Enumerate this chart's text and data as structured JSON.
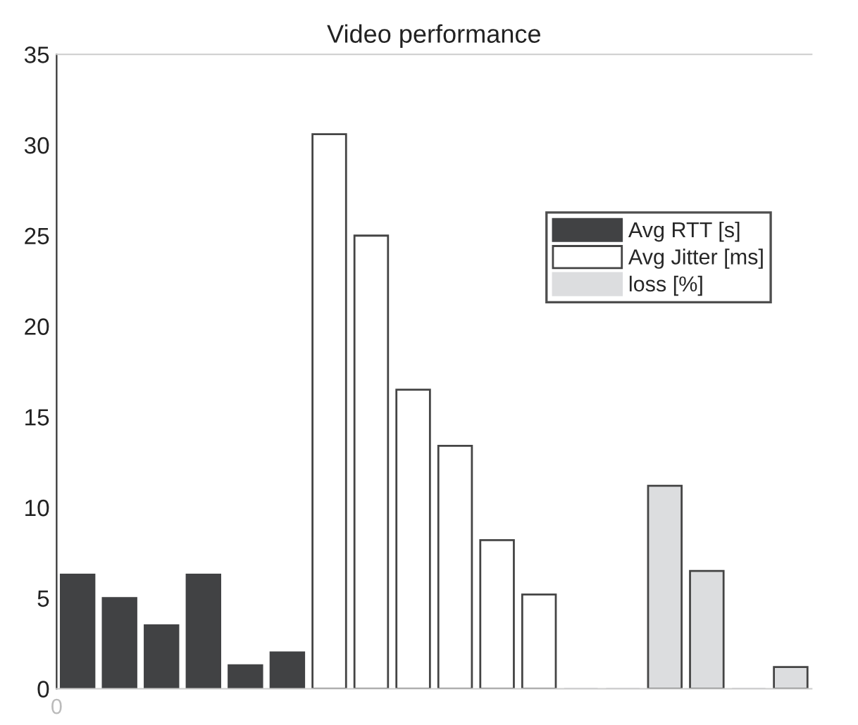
{
  "chart_data": {
    "type": "bar",
    "title": "Video performance",
    "categories": [
      null,
      null,
      null,
      null,
      null,
      null,
      null,
      null,
      null,
      null,
      null,
      null,
      null,
      null,
      null,
      null,
      null,
      null
    ],
    "series": [
      {
        "name": "Avg RTT [s]",
        "color": "#414244",
        "values": [
          6.3,
          5.0,
          3.5,
          6.3,
          1.3,
          2.0,
          null,
          null,
          null,
          null,
          null,
          null,
          null,
          null,
          null,
          null,
          null,
          null
        ]
      },
      {
        "name": "Avg Jitter [ms]",
        "color": "#ffffff",
        "values": [
          null,
          null,
          null,
          null,
          null,
          null,
          30.6,
          25.0,
          16.5,
          13.4,
          8.2,
          5.2,
          null,
          null,
          null,
          null,
          null,
          null
        ]
      },
      {
        "name": "loss [%]",
        "color": "#dcdddf",
        "values": [
          null,
          null,
          null,
          null,
          null,
          null,
          null,
          null,
          null,
          null,
          null,
          null,
          0,
          0,
          11.2,
          6.5,
          0,
          1.2
        ]
      }
    ],
    "ylim": [
      0,
      35
    ],
    "yticks": [
      0,
      5,
      10,
      15,
      20,
      25,
      30,
      35
    ],
    "legend": "right",
    "annotations": [
      "0"
    ]
  }
}
